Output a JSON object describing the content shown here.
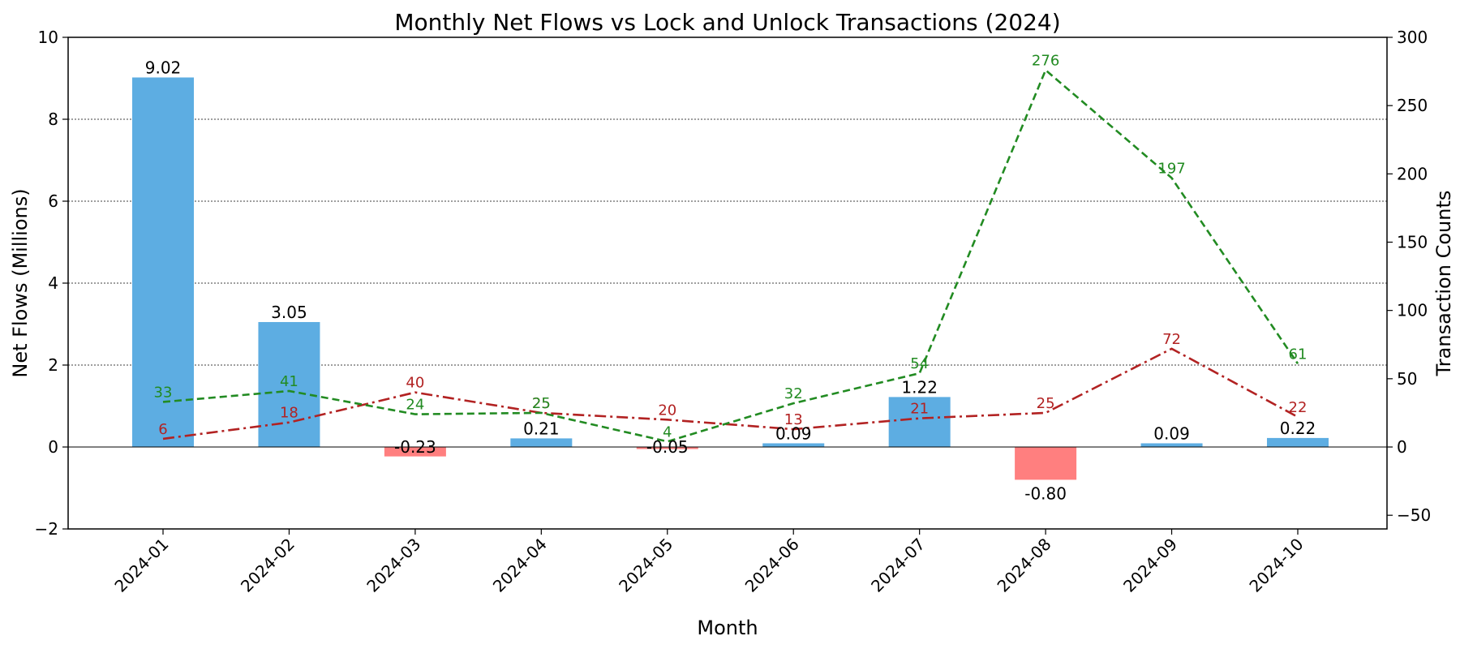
{
  "chart_data": {
    "type": "bar",
    "title": "Monthly Net Flows vs Lock and Unlock Transactions (2024)",
    "xlabel": "Month",
    "ylabel": "Net Flows (Millions)",
    "y2label": "Transaction Counts",
    "ylim": [
      -2,
      10
    ],
    "y2lim": [
      -60,
      300
    ],
    "yticks": [
      -2,
      0,
      2,
      4,
      6,
      8,
      10
    ],
    "y2ticks": [
      -50,
      0,
      50,
      100,
      150,
      200,
      250,
      300
    ],
    "ytick_labels": [
      "−2",
      "0",
      "2",
      "4",
      "6",
      "8",
      "10"
    ],
    "y2tick_labels": [
      "−50",
      "0",
      "50",
      "100",
      "150",
      "200",
      "250",
      "300"
    ],
    "grid": true,
    "categories": [
      "2024-01",
      "2024-02",
      "2024-03",
      "2024-04",
      "2024-05",
      "2024-06",
      "2024-07",
      "2024-08",
      "2024-09",
      "2024-10"
    ],
    "bar_series": {
      "values": [
        9.02,
        3.05,
        -0.23,
        0.21,
        -0.05,
        0.09,
        1.22,
        -0.8,
        0.09,
        0.22
      ],
      "labels": [
        "9.02",
        "3.05",
        "-0.23",
        "0.21",
        "-0.05",
        "0.09",
        "1.22",
        "-0.80",
        "0.09",
        "0.22"
      ],
      "positive_color": "#5DADE2",
      "negative_color": "#FF7F7F"
    },
    "line_series": [
      {
        "axis": "right",
        "style": "dashdot",
        "color": "#B22222",
        "values": [
          6,
          18,
          40,
          25,
          20,
          13,
          21,
          25,
          72,
          22
        ]
      },
      {
        "axis": "right",
        "style": "dashed",
        "color": "#228B22",
        "values": [
          33,
          41,
          24,
          25,
          4,
          32,
          54,
          276,
          197,
          61
        ]
      }
    ]
  }
}
